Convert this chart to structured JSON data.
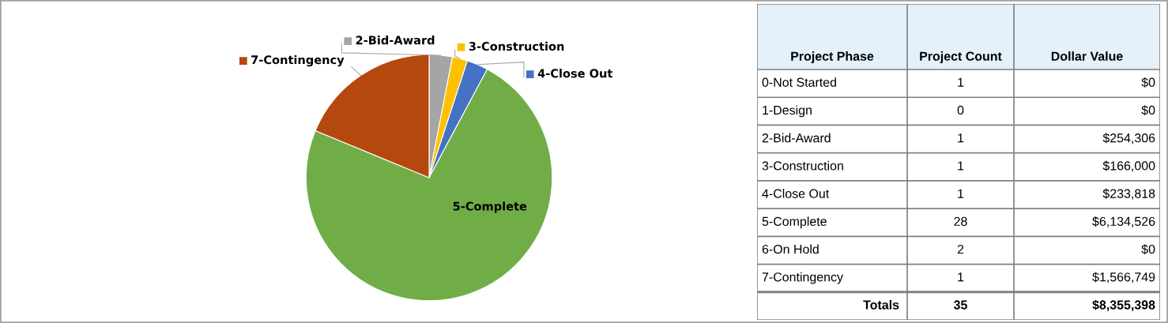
{
  "chart_data": [
    {
      "type": "pie",
      "legend": "top",
      "categories": [
        "2-Bid-Award",
        "3-Construction",
        "4-Close Out",
        "5-Complete",
        "7-Contingency"
      ],
      "values": [
        3.04,
        1.99,
        2.8,
        73.42,
        18.75
      ],
      "colors": [
        "#a5a5a5",
        "#ffc000",
        "#4472c4",
        "#70ad47",
        "#b5480f"
      ]
    },
    {
      "type": "other",
      "xlabel": "Project Phase",
      "data_labels": true,
      "categories": [
        "0-Not Started",
        "1-Design",
        "2-Bid-Award",
        "3-Construction",
        "4-Close Out",
        "5-Complete",
        "6-On Hold",
        "7-Contingency",
        "Totals"
      ],
      "series": [
        {
          "name": "Project Count",
          "values": [
            1,
            0,
            1,
            1,
            1,
            28,
            2,
            1,
            35
          ]
        },
        {
          "name": "Dollar Value",
          "values": [
            0,
            0,
            254306,
            166000,
            233818,
            6134526,
            0,
            1566749,
            8355398
          ],
          "value_labels": [
            "$0",
            "$0",
            "$254,306",
            "$166,000",
            "$233,818",
            "$6,134,526",
            "$0",
            "$1,566,749",
            "$8,355,398"
          ]
        }
      ]
    }
  ]
}
